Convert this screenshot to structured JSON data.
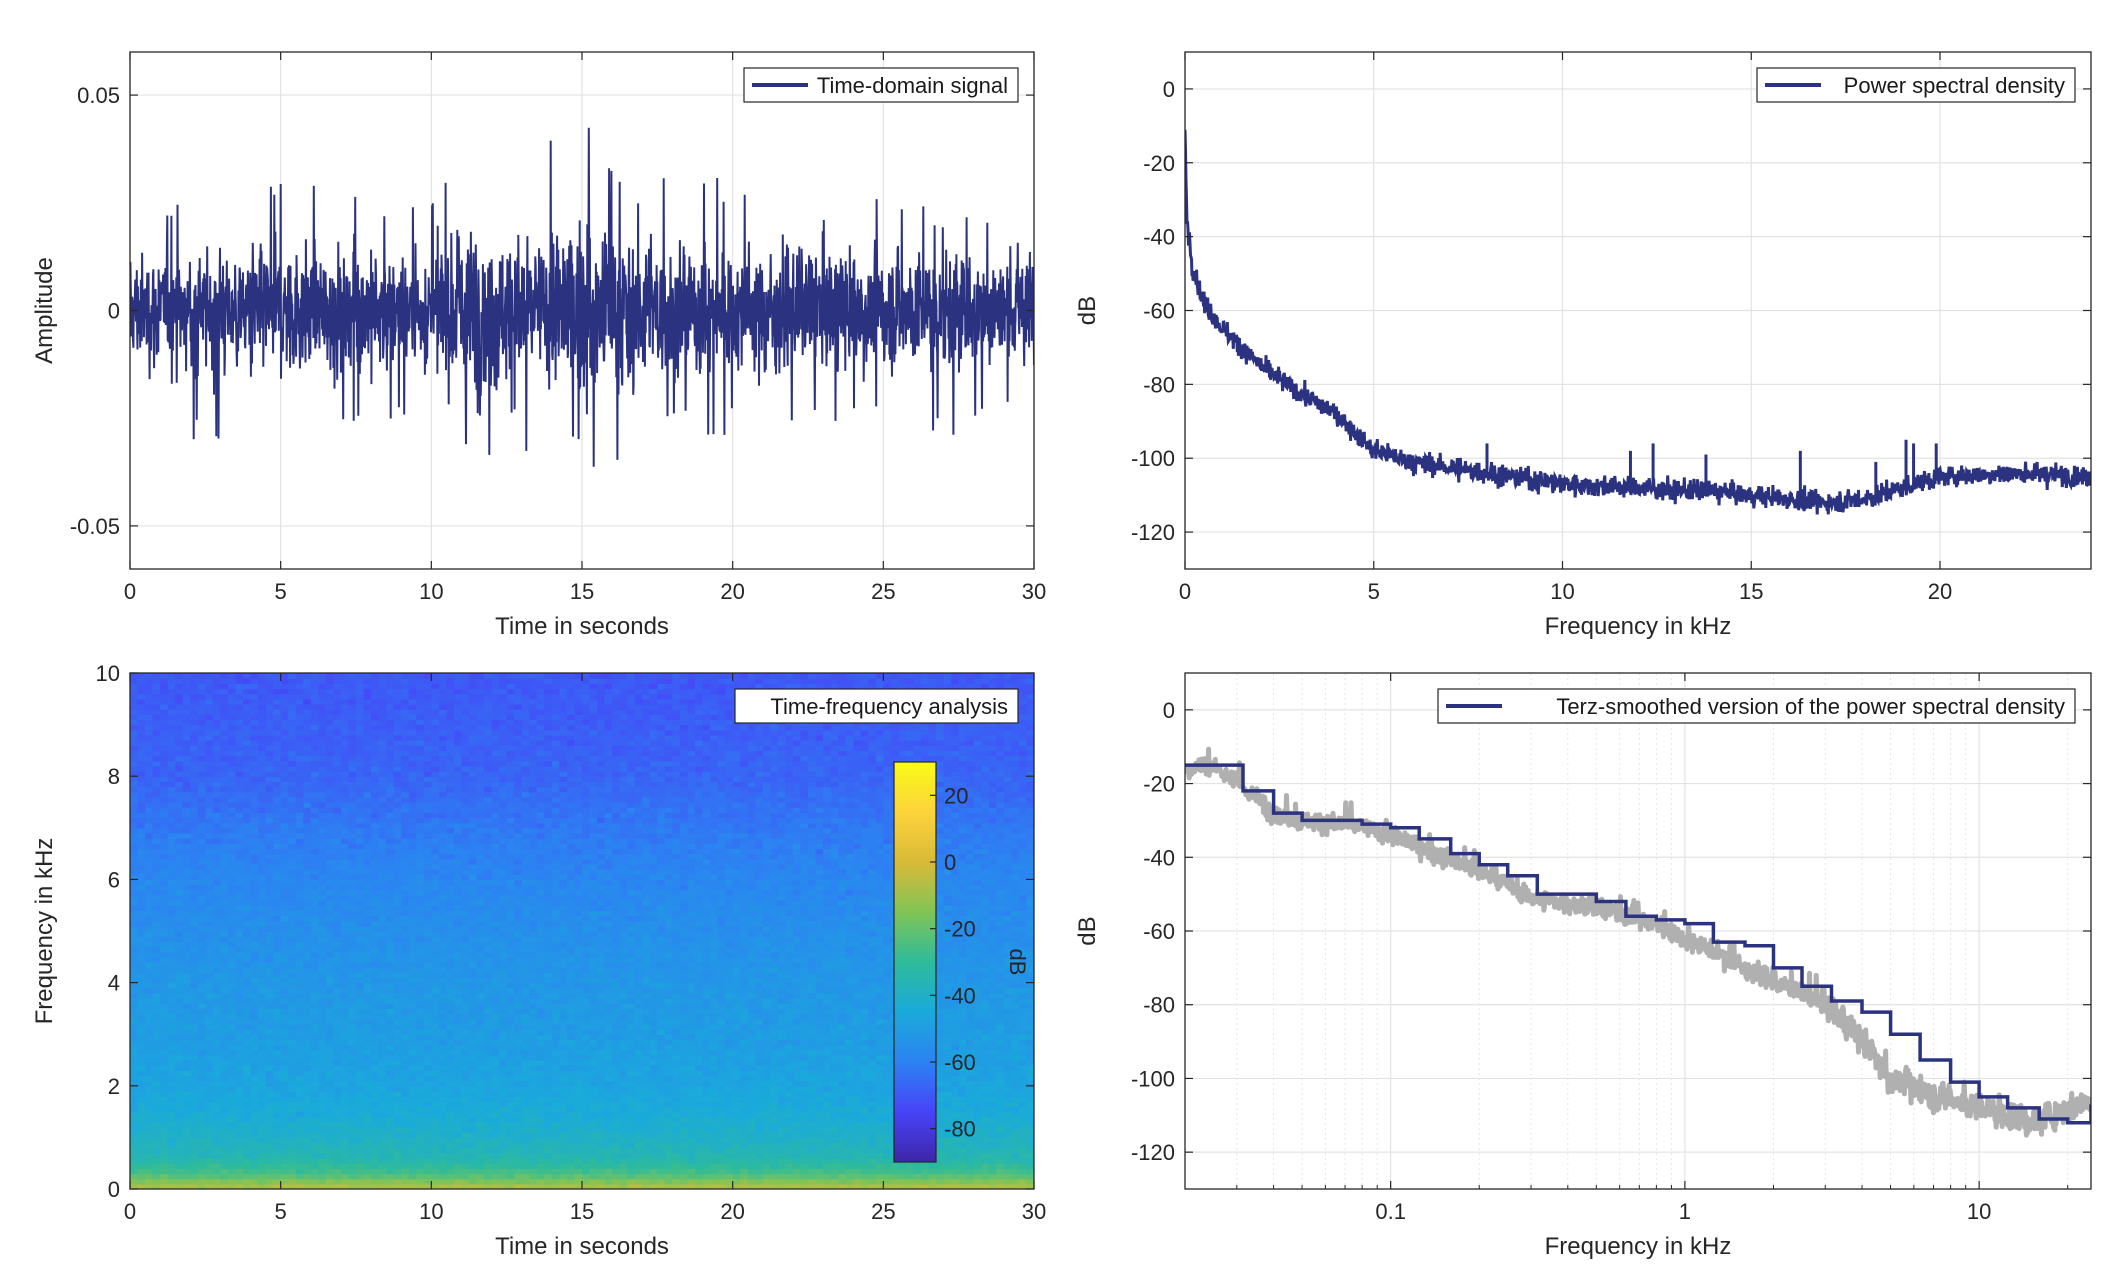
{
  "colors": {
    "signal": "#2b3280",
    "smoothed_raw": "#b0b0b0",
    "grid": "#e3e3e3",
    "axis": "#262626",
    "colormap": [
      "#3e26a8",
      "#4743f8",
      "#2c82f2",
      "#1aaadb",
      "#2ebb9b",
      "#81c456",
      "#d9ba38",
      "#fcd33a",
      "#f9fb15"
    ]
  },
  "chart_data": [
    {
      "id": "time-domain",
      "type": "line",
      "legend": [
        "Time-domain signal"
      ],
      "legend_position": "top-right",
      "xlabel": "Time in seconds",
      "ylabel": "Amplitude",
      "xlim": [
        0,
        30
      ],
      "ylim": [
        -0.06,
        0.06
      ],
      "xticks": [
        0,
        5,
        10,
        15,
        20,
        25,
        30
      ],
      "xtick_labels": [
        "0",
        "5",
        "10",
        "15",
        "20",
        "25",
        "30"
      ],
      "yticks": [
        -0.05,
        0,
        0.05
      ],
      "ytick_labels": [
        "-0.05",
        "0",
        "0.05"
      ],
      "grid": true,
      "envelope": {
        "t": [
          0,
          2,
          4,
          6,
          8,
          10,
          11,
          12,
          13,
          14,
          15,
          16,
          17,
          18,
          20,
          22,
          24,
          26,
          28,
          30
        ],
        "pos": [
          0.026,
          0.025,
          0.029,
          0.03,
          0.028,
          0.029,
          0.044,
          0.036,
          0.038,
          0.041,
          0.05,
          0.04,
          0.038,
          0.036,
          0.03,
          0.029,
          0.027,
          0.027,
          0.024,
          0.03
        ],
        "neg": [
          -0.027,
          -0.03,
          -0.032,
          -0.032,
          -0.03,
          -0.028,
          -0.038,
          -0.04,
          -0.036,
          -0.03,
          -0.038,
          -0.038,
          -0.035,
          -0.03,
          -0.03,
          -0.028,
          -0.028,
          -0.029,
          -0.03,
          -0.03
        ]
      }
    },
    {
      "id": "psd",
      "type": "line",
      "legend": [
        "Power spectral density"
      ],
      "legend_position": "top-right",
      "xlabel": "Frequency in kHz",
      "ylabel": "dB",
      "xlim": [
        0,
        24
      ],
      "ylim": [
        -130,
        10
      ],
      "xticks": [
        0,
        5,
        10,
        15,
        20
      ],
      "xtick_labels": [
        "0",
        "5",
        "10",
        "15",
        "20"
      ],
      "yticks": [
        0,
        -20,
        -40,
        -60,
        -80,
        -100,
        -120
      ],
      "ytick_labels": [
        "0",
        "-20",
        "-40",
        "-60",
        "-80",
        "-100",
        "-120"
      ],
      "grid": true,
      "trend": {
        "x": [
          0,
          0.05,
          0.2,
          0.5,
          1,
          2,
          3,
          4,
          5,
          6,
          8,
          10,
          12,
          14,
          16,
          17,
          18,
          19,
          20,
          22,
          24
        ],
        "y": [
          -12,
          -35,
          -48,
          -58,
          -65,
          -75,
          -82,
          -88,
          -98,
          -101,
          -104,
          -107,
          -108,
          -109,
          -111,
          -112,
          -111,
          -108,
          -105,
          -104,
          -105
        ]
      },
      "spikes": [
        {
          "x": 8.0,
          "y": -96
        },
        {
          "x": 11.8,
          "y": -98
        },
        {
          "x": 12.4,
          "y": -96
        },
        {
          "x": 13.8,
          "y": -99
        },
        {
          "x": 16.3,
          "y": -98
        },
        {
          "x": 18.3,
          "y": -101
        },
        {
          "x": 19.1,
          "y": -95
        },
        {
          "x": 19.3,
          "y": -96
        },
        {
          "x": 19.9,
          "y": -96
        }
      ]
    },
    {
      "id": "spectrogram",
      "type": "heatmap",
      "legend": [
        "Time-frequency analysis"
      ],
      "legend_position": "top-right",
      "xlabel": "Time in seconds",
      "ylabel": "Frequency in kHz",
      "xlim": [
        0,
        30
      ],
      "ylim": [
        0,
        10
      ],
      "xticks": [
        0,
        5,
        10,
        15,
        20,
        25,
        30
      ],
      "xtick_labels": [
        "0",
        "5",
        "10",
        "15",
        "20",
        "25",
        "30"
      ],
      "yticks": [
        0,
        2,
        4,
        6,
        8,
        10
      ],
      "ytick_labels": [
        "0",
        "2",
        "4",
        "6",
        "8",
        "10"
      ],
      "colorbar": {
        "label": "dB",
        "clim": [
          -90,
          30
        ],
        "ticks": [
          20,
          0,
          -20,
          -40,
          -60,
          -80
        ],
        "tick_labels": [
          "20",
          "0",
          "-20",
          "-40",
          "-60",
          "-80"
        ]
      },
      "level_profile": {
        "freq_khz": [
          0,
          0.1,
          0.3,
          0.6,
          1,
          1.5,
          2,
          3,
          4,
          5,
          6,
          7,
          8,
          10
        ],
        "db": [
          -5,
          -12,
          -25,
          -35,
          -40,
          -44,
          -47,
          -50,
          -52,
          -55,
          -58,
          -62,
          -67,
          -70
        ]
      }
    },
    {
      "id": "terz-smoothed",
      "type": "line",
      "legend": [
        "Terz-smoothed version of the power spectral density"
      ],
      "legend_position": "top-right",
      "xlabel": "Frequency in kHz",
      "ylabel": "dB",
      "xscale": "log",
      "xlim": [
        0.02,
        24
      ],
      "ylim": [
        -130,
        10
      ],
      "xticks": [
        0.1,
        1,
        10
      ],
      "xtick_labels": [
        "0.1",
        "1",
        "10"
      ],
      "yticks": [
        0,
        -20,
        -40,
        -60,
        -80,
        -100,
        -120
      ],
      "ytick_labels": [
        "0",
        "-20",
        "-40",
        "-60",
        "-80",
        "-100",
        "-120"
      ],
      "grid": true,
      "series": [
        {
          "style": "gray-raw",
          "x": [
            0.02,
            0.025,
            0.03,
            0.04,
            0.05,
            0.07,
            0.1,
            0.15,
            0.2,
            0.3,
            0.5,
            0.8,
            1,
            1.5,
            2,
            3,
            4,
            5,
            7,
            10,
            15,
            20,
            24
          ],
          "y": [
            -16,
            -15,
            -20,
            -28,
            -30,
            -31,
            -34,
            -40,
            -44,
            -51,
            -54,
            -58,
            -62,
            -69,
            -74,
            -80,
            -90,
            -100,
            -105,
            -108,
            -112,
            -108,
            -106
          ]
        },
        {
          "style": "terz-steps",
          "x": [
            0.02,
            0.025,
            0.0315,
            0.04,
            0.05,
            0.063,
            0.08,
            0.1,
            0.125,
            0.16,
            0.2,
            0.25,
            0.315,
            0.4,
            0.5,
            0.63,
            0.8,
            1,
            1.25,
            1.6,
            2,
            2.5,
            3.15,
            4,
            5,
            6.3,
            8,
            10,
            12.5,
            16,
            20,
            24
          ],
          "y": [
            -15,
            -15,
            -22,
            -28,
            -30,
            -30,
            -31,
            -32,
            -35,
            -39,
            -42,
            -45,
            -50,
            -50,
            -52,
            -56,
            -57,
            -58,
            -63,
            -64,
            -70,
            -75,
            -79,
            -82,
            -88,
            -95,
            -101,
            -105,
            -108,
            -111,
            -112,
            -107
          ]
        }
      ]
    }
  ]
}
